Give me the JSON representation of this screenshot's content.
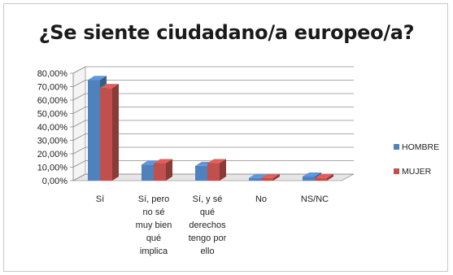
{
  "chart_data": {
    "type": "bar",
    "title": "¿Se siente ciudadano/a europeo/a?",
    "categories": [
      [
        "Sí"
      ],
      [
        "Sí,  pero",
        "no sé",
        "muy bien",
        "qué",
        "implica"
      ],
      [
        "Sí, y sé",
        "qué",
        "derechos",
        "tengo por",
        "ello"
      ],
      [
        "No"
      ],
      [
        "NS/NC"
      ]
    ],
    "series": [
      {
        "name": "HOMBRE",
        "color": "#4f81bd",
        "values": [
          75,
          12,
          11,
          2,
          3
        ]
      },
      {
        "name": "MUJER",
        "color": "#c0504d",
        "values": [
          69,
          13,
          13,
          2,
          2
        ]
      }
    ],
    "ylim": [
      0,
      80
    ],
    "yticks": [
      "0,00%",
      "10,00%",
      "20,00%",
      "30,00%",
      "40,00%",
      "50,00%",
      "60,00%",
      "70,00%",
      "80,00%"
    ],
    "grid": true,
    "legend": "right",
    "style": "3d-clustered-column"
  }
}
